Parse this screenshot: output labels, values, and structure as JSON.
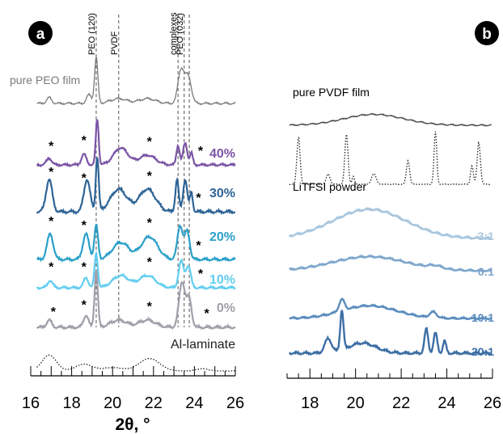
{
  "chart_data": [
    {
      "panel_label": "a",
      "type": "line",
      "xlabel": "2θ, °",
      "xlim": [
        16,
        26
      ],
      "xticks": [
        "16",
        "18",
        "20",
        "22",
        "24",
        "26"
      ],
      "ylabel": "",
      "reference_lines": [
        {
          "label": "PEO (120)",
          "x": 19.2
        },
        {
          "label": "PVDF",
          "x": 20.3
        },
        {
          "label": "complexes",
          "x": 23.2
        },
        {
          "label": "PEO (032)",
          "x": 23.5
        }
      ],
      "extra_dashes": [
        23.75
      ],
      "series": [
        {
          "name": "pure PEO film",
          "color": "#7a7a7a",
          "style": "solid",
          "peaks": [
            [
              16.9,
              0.12,
              0.12
            ],
            [
              18.85,
              0.18,
              0.12
            ],
            [
              19.2,
              0.95,
              0.08
            ],
            [
              20.3,
              0.1,
              0.4
            ],
            [
              21.7,
              0.1,
              0.4
            ],
            [
              23.35,
              0.7,
              0.15
            ],
            [
              23.7,
              0.55,
              0.15
            ]
          ],
          "asterisks": []
        },
        {
          "name": "40%",
          "color": "#7b55a6",
          "style": "solid",
          "peaks": [
            [
              16.9,
              0.14,
              0.12
            ],
            [
              18.6,
              0.22,
              0.12
            ],
            [
              19.25,
              0.95,
              0.07
            ],
            [
              20.4,
              0.35,
              0.35
            ],
            [
              21.7,
              0.2,
              0.4
            ],
            [
              23.2,
              0.4,
              0.08
            ],
            [
              23.55,
              0.45,
              0.1
            ],
            [
              23.85,
              0.25,
              0.07
            ]
          ],
          "asterisks": [
            17.0,
            18.6,
            21.8,
            24.3
          ]
        },
        {
          "name": "30%",
          "color": "#2e6496",
          "style": "solid",
          "peaks": [
            [
              16.9,
              0.5,
              0.15
            ],
            [
              18.75,
              0.5,
              0.15
            ],
            [
              19.25,
              0.85,
              0.07
            ],
            [
              20.3,
              0.35,
              0.4
            ],
            [
              21.7,
              0.35,
              0.4
            ],
            [
              23.15,
              0.5,
              0.08
            ],
            [
              23.55,
              0.5,
              0.1
            ],
            [
              23.85,
              0.3,
              0.07
            ]
          ],
          "asterisks": [
            17.0,
            18.6,
            21.8,
            24.2
          ]
        },
        {
          "name": "20%",
          "color": "#2aa0c8",
          "style": "solid",
          "peaks": [
            [
              16.95,
              0.45,
              0.15
            ],
            [
              18.7,
              0.45,
              0.15
            ],
            [
              19.2,
              0.6,
              0.09
            ],
            [
              20.4,
              0.3,
              0.4
            ],
            [
              21.8,
              0.4,
              0.4
            ],
            [
              23.3,
              0.6,
              0.13
            ],
            [
              23.65,
              0.5,
              0.12
            ]
          ],
          "asterisks": [
            17.0,
            18.6,
            21.8,
            24.2
          ]
        },
        {
          "name": "10%",
          "color": "#62cdf0",
          "style": "solid",
          "peaks": [
            [
              16.95,
              0.15,
              0.12
            ],
            [
              18.7,
              0.2,
              0.12
            ],
            [
              19.2,
              0.7,
              0.08
            ],
            [
              20.4,
              0.25,
              0.4
            ],
            [
              21.7,
              0.25,
              0.4
            ],
            [
              23.35,
              0.55,
              0.12
            ],
            [
              23.7,
              0.45,
              0.12
            ]
          ],
          "asterisks": [
            17.0,
            18.6,
            21.8,
            24.3
          ]
        },
        {
          "name": "0%",
          "color": "#a0a0aa",
          "style": "solid",
          "peaks": [
            [
              16.9,
              0.12,
              0.12
            ],
            [
              18.7,
              0.2,
              0.12
            ],
            [
              19.2,
              0.95,
              0.08
            ],
            [
              20.3,
              0.12,
              0.4
            ],
            [
              21.7,
              0.12,
              0.4
            ],
            [
              23.4,
              0.75,
              0.15
            ],
            [
              23.75,
              0.45,
              0.12
            ]
          ],
          "asterisks": [
            17.1,
            18.6,
            21.8,
            24.6
          ]
        },
        {
          "name": "Al-laminate",
          "color": "#222222",
          "style": "dotted",
          "peaks": [
            [
              16.9,
              0.7,
              0.35
            ],
            [
              18.6,
              0.3,
              0.4
            ],
            [
              20.0,
              0.15,
              0.5
            ],
            [
              21.8,
              0.55,
              0.5
            ],
            [
              24.4,
              0.1,
              0.3
            ]
          ],
          "asterisks": []
        }
      ]
    },
    {
      "panel_label": "b",
      "type": "line",
      "xlabel": "",
      "xlim": [
        17,
        26
      ],
      "xticks": [
        "18",
        "20",
        "22",
        "24",
        "26"
      ],
      "ylabel": "",
      "series": [
        {
          "name": "pure PVDF film",
          "color": "#444444",
          "style": "solid",
          "peaks": [
            [
              20.8,
              0.45,
              1.3
            ]
          ]
        },
        {
          "name": "LiTFSI powder",
          "color": "#222222",
          "style": "dotted",
          "peaks": [
            [
              17.5,
              0.9,
              0.07
            ],
            [
              18.8,
              0.2,
              0.08
            ],
            [
              19.6,
              0.95,
              0.07
            ],
            [
              19.9,
              0.15,
              0.05
            ],
            [
              20.8,
              0.2,
              0.1
            ],
            [
              22.3,
              0.45,
              0.07
            ],
            [
              23.5,
              1.0,
              0.06
            ],
            [
              25.1,
              0.35,
              0.06
            ],
            [
              25.4,
              0.8,
              0.07
            ]
          ]
        },
        {
          "name": "3:1",
          "color": "#a8c6de",
          "style": "solid",
          "peaks": [
            [
              20.6,
              0.9,
              1.6
            ]
          ]
        },
        {
          "name": "6:1",
          "color": "#7ea6cc",
          "style": "solid",
          "peaks": [
            [
              20.6,
              0.5,
              1.6
            ],
            [
              23.5,
              0.1,
              0.3
            ]
          ]
        },
        {
          "name": "10:1",
          "color": "#5a8cbe",
          "style": "solid",
          "peaks": [
            [
              19.4,
              0.4,
              0.12
            ],
            [
              20.6,
              0.45,
              1.2
            ],
            [
              23.4,
              0.2,
              0.15
            ]
          ]
        },
        {
          "name": "20:1",
          "color": "#3d6ea5",
          "style": "solid",
          "peaks": [
            [
              18.8,
              0.35,
              0.15
            ],
            [
              19.4,
              1.0,
              0.07
            ],
            [
              20.3,
              0.25,
              0.6
            ],
            [
              23.1,
              0.6,
              0.08
            ],
            [
              23.5,
              0.5,
              0.08
            ],
            [
              23.9,
              0.3,
              0.07
            ]
          ]
        }
      ]
    }
  ]
}
